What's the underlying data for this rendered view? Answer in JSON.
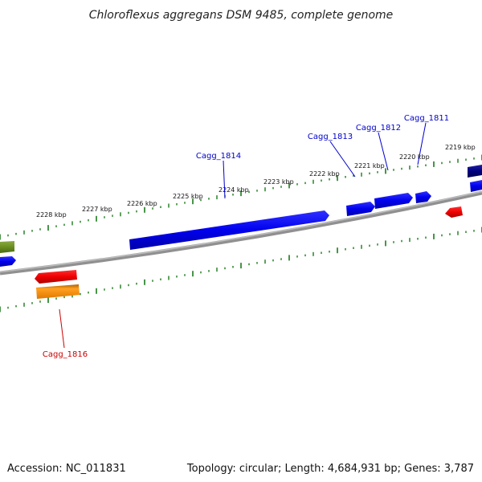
{
  "title": "Chloroflexus aggregans DSM 9485, complete genome",
  "footer": {
    "accession": "Accession: NC_011831",
    "summary": "Topology: circular; Length: 4,684,931 bp; Genes: 3,787"
  },
  "colors": {
    "forward_gene": "#0000ee",
    "reverse_gene": "#ee0000",
    "rna_gene": "#ff8c00",
    "olive_gene": "#6b8e23",
    "navy_gene": "#000080",
    "tick": "#1a7a1a",
    "backbone": "#808080",
    "label_forward": "#0000cc",
    "label_reverse": "#cc0000"
  },
  "kbp_ticks": [
    "2228 kbp",
    "2227 kbp",
    "2226 kbp",
    "2225 kbp",
    "2224 kbp",
    "2223 kbp",
    "2222 kbp",
    "2221 kbp",
    "2220 kbp",
    "2219 kbp"
  ],
  "gene_labels": [
    {
      "name": "Cagg_1814",
      "strand": "forward"
    },
    {
      "name": "Cagg_1813",
      "strand": "forward"
    },
    {
      "name": "Cagg_1812",
      "strand": "forward"
    },
    {
      "name": "Cagg_1811",
      "strand": "forward"
    },
    {
      "name": "Cagg_1816",
      "strand": "reverse"
    }
  ]
}
